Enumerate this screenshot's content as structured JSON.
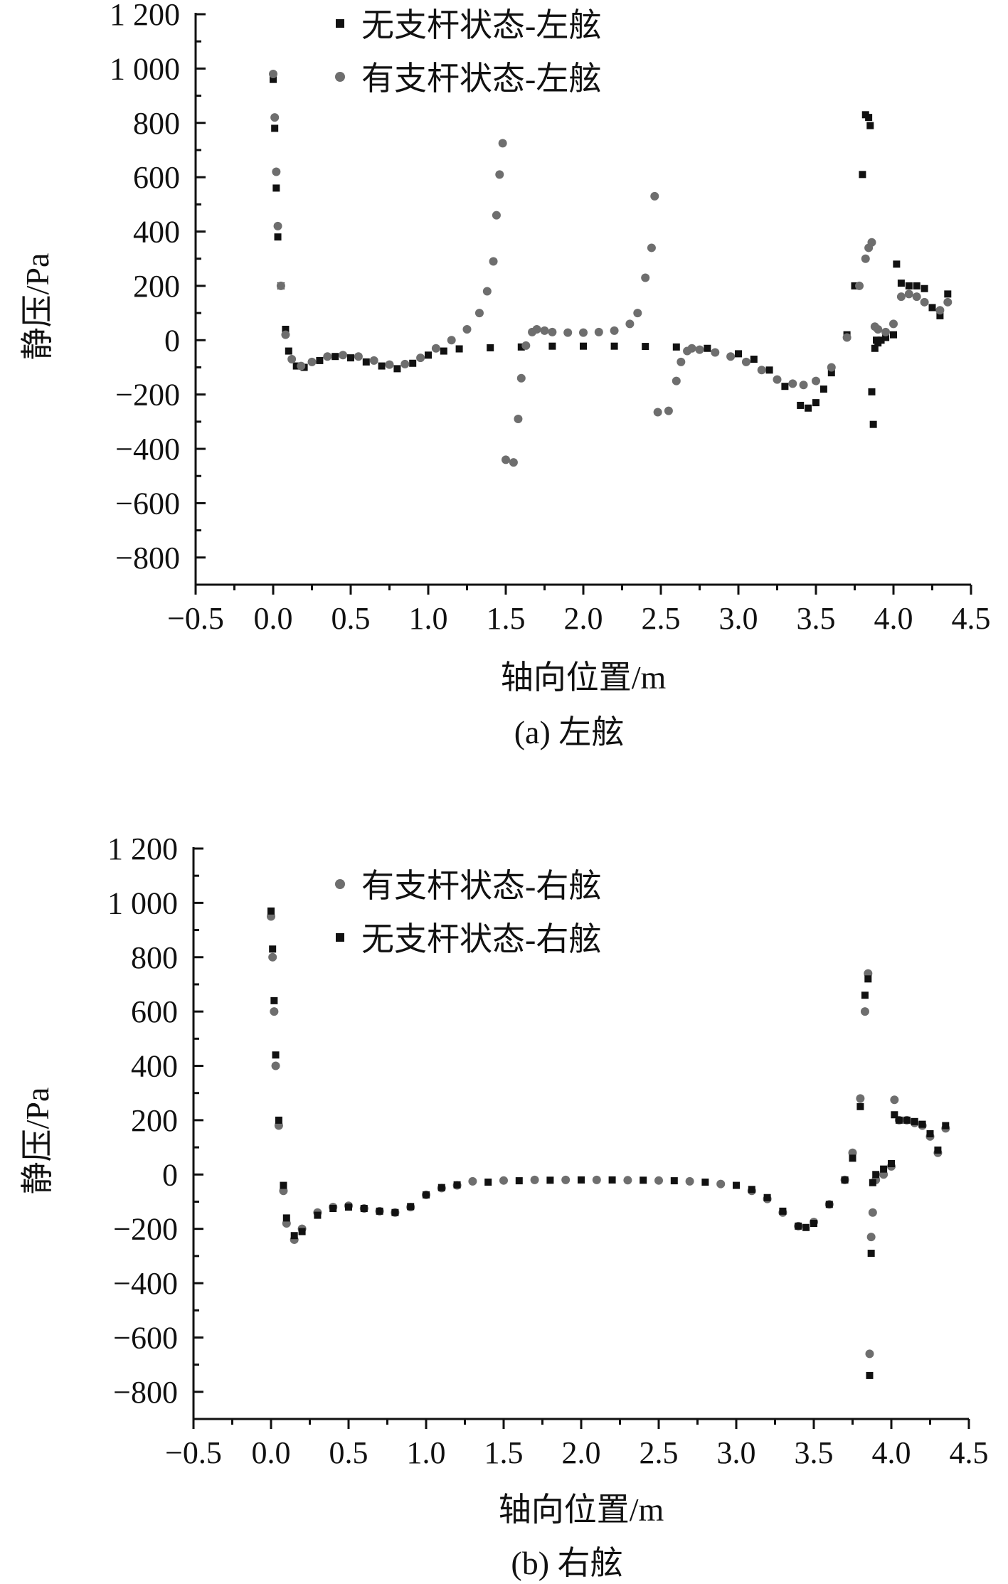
{
  "chart_data": [
    {
      "type": "scatter",
      "caption": "(a) 左舷",
      "xlabel": "轴向位置/m",
      "ylabel": "静压/Pa",
      "xlim": [
        -0.5,
        4.5
      ],
      "ylim": [
        -900,
        1200
      ],
      "x_ticks": [
        -0.5,
        0.0,
        0.5,
        1.0,
        1.5,
        2.0,
        2.5,
        3.0,
        3.5,
        4.0,
        4.5
      ],
      "x_tick_labels": [
        "−0.5",
        "0.0",
        "0.5",
        "1.0",
        "1.5",
        "2.0",
        "2.5",
        "3.0",
        "3.5",
        "4.0",
        "4.5"
      ],
      "y_ticks": [
        -800,
        -600,
        -400,
        -200,
        0,
        200,
        400,
        600,
        800,
        1000,
        1200
      ],
      "y_tick_labels": [
        "−800",
        "−600",
        "−400",
        "−200",
        "0",
        "200",
        "400",
        "600",
        "800",
        "1 000",
        "1 200"
      ],
      "legend_position": "top-center",
      "series": [
        {
          "name": "无支杆状态-左舷",
          "marker": "square",
          "color": "#111111",
          "x": [
            0.0,
            0.01,
            0.02,
            0.03,
            0.05,
            0.08,
            0.1,
            0.15,
            0.2,
            0.3,
            0.4,
            0.5,
            0.6,
            0.7,
            0.8,
            0.9,
            1.0,
            1.1,
            1.2,
            1.4,
            1.6,
            1.8,
            2.0,
            2.2,
            2.4,
            2.6,
            2.8,
            3.0,
            3.1,
            3.2,
            3.3,
            3.4,
            3.45,
            3.5,
            3.55,
            3.6,
            3.7,
            3.75,
            3.8,
            3.82,
            3.84,
            3.85,
            3.86,
            3.87,
            3.88,
            3.89,
            3.9,
            3.92,
            3.95,
            4.0,
            4.02,
            4.05,
            4.1,
            4.15,
            4.2,
            4.25,
            4.3,
            4.35
          ],
          "y": [
            960,
            780,
            560,
            380,
            200,
            40,
            -40,
            -95,
            -100,
            -75,
            -60,
            -65,
            -80,
            -95,
            -105,
            -85,
            -55,
            -40,
            -32,
            -28,
            -25,
            -22,
            -22,
            -22,
            -23,
            -25,
            -30,
            -50,
            -70,
            -110,
            -170,
            -240,
            -250,
            -230,
            -180,
            -120,
            20,
            200,
            610,
            830,
            820,
            790,
            -190,
            -310,
            -30,
            0,
            -10,
            0,
            10,
            20,
            280,
            210,
            200,
            200,
            190,
            120,
            90,
            170
          ]
        },
        {
          "name": "有支杆状态-左舷",
          "marker": "circle",
          "color": "#6e6e6e",
          "x": [
            0.0,
            0.01,
            0.02,
            0.03,
            0.05,
            0.08,
            0.12,
            0.18,
            0.25,
            0.35,
            0.45,
            0.55,
            0.65,
            0.75,
            0.85,
            0.95,
            1.05,
            1.15,
            1.25,
            1.33,
            1.38,
            1.42,
            1.44,
            1.46,
            1.48,
            1.5,
            1.55,
            1.58,
            1.6,
            1.63,
            1.67,
            1.7,
            1.75,
            1.8,
            1.9,
            2.0,
            2.1,
            2.2,
            2.3,
            2.35,
            2.4,
            2.44,
            2.46,
            2.48,
            2.55,
            2.6,
            2.63,
            2.67,
            2.7,
            2.75,
            2.85,
            2.95,
            3.05,
            3.15,
            3.25,
            3.35,
            3.42,
            3.5,
            3.6,
            3.7,
            3.78,
            3.82,
            3.84,
            3.86,
            3.88,
            3.9,
            3.95,
            4.0,
            4.05,
            4.1,
            4.15,
            4.2,
            4.3,
            4.35
          ],
          "y": [
            980,
            820,
            620,
            420,
            200,
            20,
            -70,
            -95,
            -80,
            -60,
            -55,
            -60,
            -75,
            -90,
            -88,
            -65,
            -30,
            0,
            40,
            100,
            180,
            290,
            460,
            610,
            725,
            -440,
            -450,
            -290,
            -140,
            -20,
            30,
            40,
            35,
            30,
            28,
            28,
            30,
            35,
            60,
            100,
            230,
            340,
            530,
            -265,
            -260,
            -150,
            -80,
            -40,
            -30,
            -35,
            -45,
            -60,
            -80,
            -110,
            -145,
            -160,
            -165,
            -150,
            -100,
            10,
            200,
            300,
            340,
            360,
            50,
            40,
            30,
            60,
            160,
            170,
            160,
            140,
            110,
            140
          ]
        }
      ]
    },
    {
      "type": "scatter",
      "caption": "(b) 右舷",
      "xlabel": "轴向位置/m",
      "ylabel": "静压/Pa",
      "xlim": [
        -0.5,
        4.5
      ],
      "ylim": [
        -900,
        1200
      ],
      "x_ticks": [
        -0.5,
        0.0,
        0.5,
        1.0,
        1.5,
        2.0,
        2.5,
        3.0,
        3.5,
        4.0,
        4.5
      ],
      "x_tick_labels": [
        "−0.5",
        "0.0",
        "0.5",
        "1.0",
        "1.5",
        "2.0",
        "2.5",
        "3.0",
        "3.5",
        "4.0",
        "4.5"
      ],
      "y_ticks": [
        -800,
        -600,
        -400,
        -200,
        0,
        200,
        400,
        600,
        800,
        1000,
        1200
      ],
      "y_tick_labels": [
        "−800",
        "−600",
        "−400",
        "−200",
        "0",
        "200",
        "400",
        "600",
        "800",
        "1 000",
        "1 200"
      ],
      "legend_position": "top-center",
      "series": [
        {
          "name": "有支杆状态-右舷",
          "marker": "circle",
          "color": "#6e6e6e",
          "x": [
            0.0,
            0.01,
            0.02,
            0.03,
            0.05,
            0.08,
            0.1,
            0.15,
            0.2,
            0.3,
            0.4,
            0.5,
            0.6,
            0.7,
            0.8,
            0.9,
            1.0,
            1.1,
            1.2,
            1.3,
            1.5,
            1.7,
            1.9,
            2.1,
            2.3,
            2.5,
            2.7,
            2.9,
            3.1,
            3.2,
            3.3,
            3.4,
            3.5,
            3.6,
            3.7,
            3.75,
            3.8,
            3.83,
            3.85,
            3.86,
            3.87,
            3.88,
            3.9,
            3.95,
            4.0,
            4.02,
            4.05,
            4.1,
            4.15,
            4.2,
            4.25,
            4.3,
            4.35
          ],
          "y": [
            950,
            800,
            600,
            400,
            180,
            -60,
            -180,
            -240,
            -200,
            -140,
            -120,
            -115,
            -125,
            -135,
            -140,
            -120,
            -75,
            -50,
            -40,
            -25,
            -22,
            -20,
            -20,
            -20,
            -21,
            -22,
            -25,
            -35,
            -60,
            -90,
            -140,
            -190,
            -175,
            -110,
            -20,
            80,
            280,
            600,
            740,
            -660,
            -230,
            -140,
            -20,
            0,
            30,
            275,
            200,
            200,
            190,
            180,
            140,
            80,
            170
          ]
        },
        {
          "name": "无支杆状态-右舷",
          "marker": "square",
          "color": "#111111",
          "x": [
            0.0,
            0.01,
            0.02,
            0.03,
            0.05,
            0.08,
            0.1,
            0.15,
            0.2,
            0.3,
            0.4,
            0.5,
            0.6,
            0.7,
            0.8,
            0.9,
            1.0,
            1.1,
            1.2,
            1.4,
            1.6,
            1.8,
            2.0,
            2.2,
            2.4,
            2.6,
            2.8,
            3.0,
            3.1,
            3.2,
            3.3,
            3.4,
            3.45,
            3.5,
            3.6,
            3.7,
            3.75,
            3.8,
            3.83,
            3.85,
            3.86,
            3.87,
            3.88,
            3.9,
            3.95,
            4.0,
            4.02,
            4.05,
            4.1,
            4.15,
            4.2,
            4.25,
            4.3,
            4.35
          ],
          "y": [
            970,
            830,
            640,
            440,
            200,
            -40,
            -160,
            -225,
            -210,
            -150,
            -125,
            -120,
            -125,
            -135,
            -140,
            -118,
            -75,
            -48,
            -38,
            -28,
            -23,
            -21,
            -20,
            -20,
            -21,
            -23,
            -28,
            -40,
            -55,
            -85,
            -135,
            -190,
            -195,
            -180,
            -110,
            -20,
            60,
            250,
            660,
            720,
            -740,
            -290,
            -30,
            0,
            20,
            40,
            220,
            200,
            200,
            195,
            185,
            150,
            90,
            180
          ]
        }
      ]
    }
  ]
}
